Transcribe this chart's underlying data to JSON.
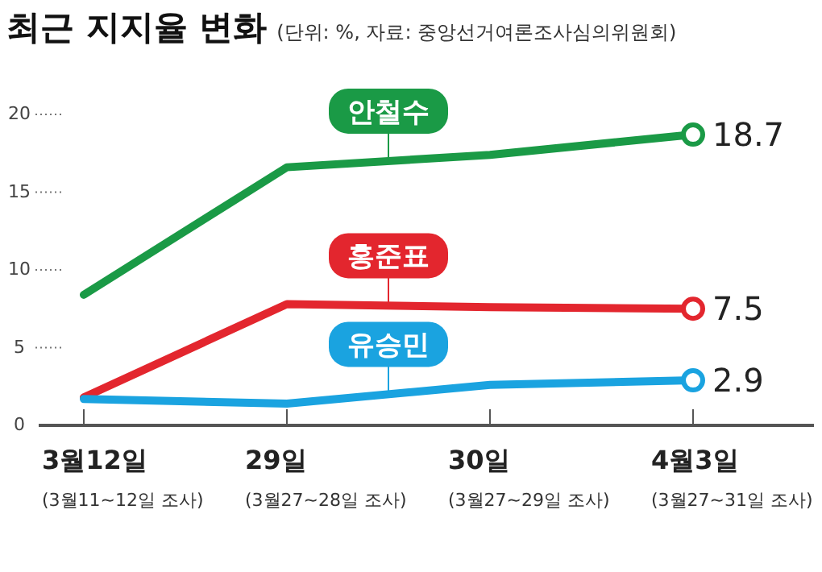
{
  "chart_data": {
    "type": "line",
    "title": "최근 지지율 변화",
    "subtitle": "(단위: %, 자료: 중앙선거여론조사심의위원회)",
    "categories": [
      "3월12일",
      "29일",
      "30일",
      "4월3일"
    ],
    "series": [
      {
        "name": "안철수",
        "color": "#1a9a46",
        "values": [
          8.4,
          16.6,
          17.4,
          18.7
        ],
        "value_labels": [
          null,
          null,
          null,
          "18.7"
        ]
      },
      {
        "name": "홍준표",
        "color": "#e3262e",
        "values": [
          1.8,
          7.8,
          7.6,
          7.5
        ],
        "value_labels": [
          null,
          null,
          null,
          "7.5"
        ]
      },
      {
        "name": "유승민",
        "color": "#1aa3e0",
        "values": [
          1.7,
          1.4,
          2.6,
          2.9
        ],
        "value_labels": [
          null,
          null,
          null,
          "2.9"
        ]
      }
    ],
    "ylim": [
      0,
      20
    ],
    "yticks": [
      0,
      5,
      10,
      15,
      20
    ],
    "annotations": [
      "(3월11~12일 조사)",
      "(3월27~28일 조사)",
      "(3월27~29일 조사)",
      "(3월27~31일 조사)"
    ]
  }
}
